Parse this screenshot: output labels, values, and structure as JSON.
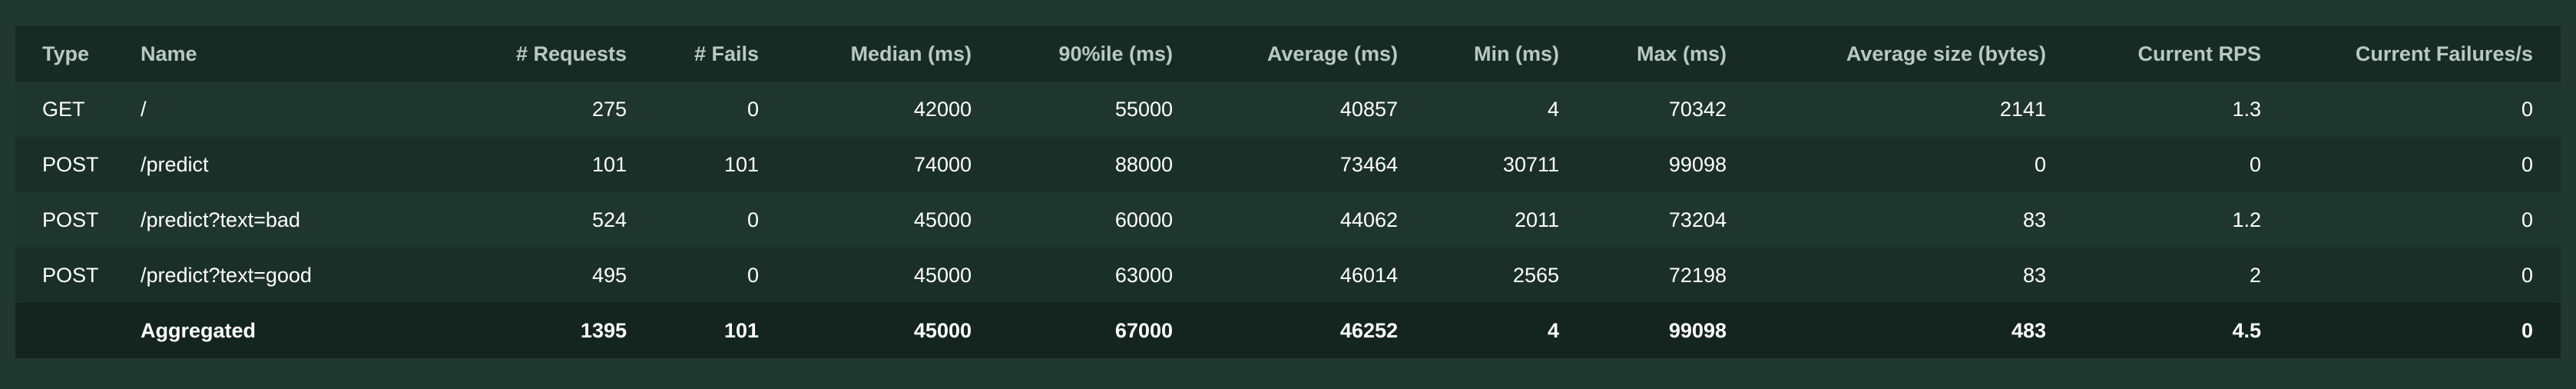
{
  "table": {
    "headers": {
      "type": "Type",
      "name": "Name",
      "requests": "# Requests",
      "fails": "# Fails",
      "median": "Median (ms)",
      "p90": "90%ile (ms)",
      "average": "Average (ms)",
      "min": "Min (ms)",
      "max": "Max (ms)",
      "avg_size": "Average size (bytes)",
      "rps": "Current RPS",
      "failures_s": "Current Failures/s"
    },
    "rows": [
      {
        "type": "GET",
        "name": "/",
        "requests": "275",
        "fails": "0",
        "median": "42000",
        "p90": "55000",
        "average": "40857",
        "min": "4",
        "max": "70342",
        "avg_size": "2141",
        "rps": "1.3",
        "failures_s": "0"
      },
      {
        "type": "POST",
        "name": "/predict",
        "requests": "101",
        "fails": "101",
        "median": "74000",
        "p90": "88000",
        "average": "73464",
        "min": "30711",
        "max": "99098",
        "avg_size": "0",
        "rps": "0",
        "failures_s": "0"
      },
      {
        "type": "POST",
        "name": "/predict?text=bad",
        "requests": "524",
        "fails": "0",
        "median": "45000",
        "p90": "60000",
        "average": "44062",
        "min": "2011",
        "max": "73204",
        "avg_size": "83",
        "rps": "1.2",
        "failures_s": "0"
      },
      {
        "type": "POST",
        "name": "/predict?text=good",
        "requests": "495",
        "fails": "0",
        "median": "45000",
        "p90": "63000",
        "average": "46014",
        "min": "2565",
        "max": "72198",
        "avg_size": "83",
        "rps": "2",
        "failures_s": "0"
      }
    ],
    "aggregated": {
      "type": "",
      "name": "Aggregated",
      "requests": "1395",
      "fails": "101",
      "median": "45000",
      "p90": "67000",
      "average": "46252",
      "min": "4",
      "max": "99098",
      "avg_size": "483",
      "rps": "4.5",
      "failures_s": "0"
    }
  }
}
